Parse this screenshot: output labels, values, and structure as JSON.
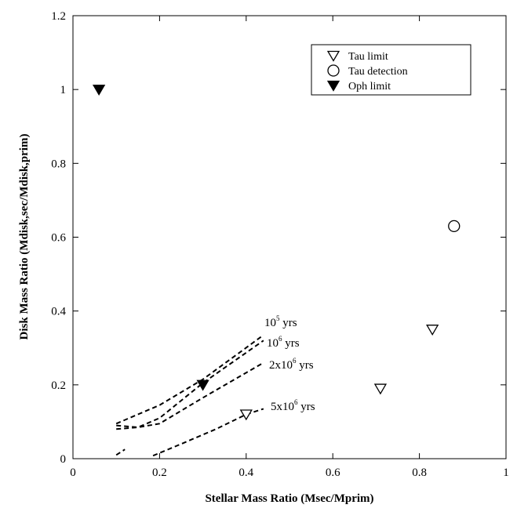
{
  "chart_data": {
    "type": "scatter",
    "title": "",
    "xlabel": "Stellar Mass Ratio (Msec/Mprim)",
    "ylabel": "Disk Mass Ratio (Mdisk,sec/Mdisk,prim)",
    "xlim": [
      0,
      1
    ],
    "ylim": [
      0,
      1.2
    ],
    "xticks": [
      0,
      0.2,
      0.4,
      0.6,
      0.8,
      1
    ],
    "xtick_labels": [
      "0",
      "0.2",
      "0.4",
      "0.6",
      "0.8",
      "1"
    ],
    "yticks": [
      0,
      0.2,
      0.4,
      0.6,
      0.8,
      1,
      1.2
    ],
    "ytick_labels": [
      "0",
      "0.2",
      "0.4",
      "0.6",
      "0.8",
      "1",
      "1.2"
    ],
    "grid": false,
    "legend_position": "top-right",
    "series": [
      {
        "name": "Tau limit",
        "marker": "open-triangle-down",
        "points": [
          [
            0.4,
            0.12
          ],
          [
            0.71,
            0.19
          ],
          [
            0.83,
            0.35
          ]
        ]
      },
      {
        "name": "Tau detection",
        "marker": "open-circle",
        "points": [
          [
            0.88,
            0.63
          ]
        ]
      },
      {
        "name": "Oph limit",
        "marker": "filled-triangle-down",
        "points": [
          [
            0.06,
            1.0
          ],
          [
            0.3,
            0.2
          ]
        ]
      }
    ],
    "curves": [
      {
        "label_base": "10",
        "label_exp": "5",
        "label_suffix": " yrs",
        "style": "dashed",
        "points": [
          [
            0.1,
            0.095
          ],
          [
            0.2,
            0.145
          ],
          [
            0.3,
            0.215
          ],
          [
            0.44,
            0.335
          ]
        ]
      },
      {
        "label_base": "10",
        "label_exp": "6",
        "label_suffix": " yrs",
        "style": "dashed",
        "points": [
          [
            0.1,
            0.08
          ],
          [
            0.15,
            0.085
          ],
          [
            0.2,
            0.11
          ],
          [
            0.3,
            0.205
          ],
          [
            0.44,
            0.32
          ]
        ]
      },
      {
        "label_base": "2x10",
        "label_exp": "6",
        "label_suffix": " yrs",
        "style": "dashed",
        "points": [
          [
            0.1,
            0.09
          ],
          [
            0.15,
            0.085
          ],
          [
            0.2,
            0.095
          ],
          [
            0.3,
            0.165
          ],
          [
            0.44,
            0.26
          ]
        ]
      },
      {
        "label_base": "5x10",
        "label_exp": "6",
        "label_suffix": " yrs",
        "style": "dashed",
        "points": [
          [
            0.1,
            0.01
          ],
          [
            0.12,
            0.025
          ]
        ]
      },
      {
        "label_base": "",
        "label_exp": "",
        "label_suffix": "",
        "style": "dashed",
        "points": [
          [
            0.185,
            0.008
          ],
          [
            0.25,
            0.04
          ],
          [
            0.33,
            0.08
          ],
          [
            0.4,
            0.12
          ],
          [
            0.44,
            0.135
          ]
        ]
      }
    ]
  }
}
